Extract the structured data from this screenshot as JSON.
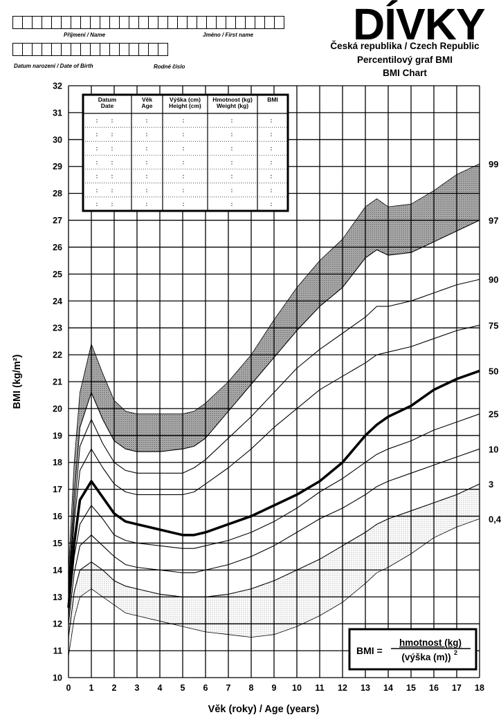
{
  "form": {
    "surname_label": "Příjmení  / Name",
    "firstname_label": "Jméno / First name",
    "dob_label": "Datum narození / Date of Birth",
    "id_label": "Rodné číslo"
  },
  "header": {
    "title": "DÍVKY",
    "line1": "Česká republika / Czech Republic",
    "line2": "Percentilový graf BMI",
    "line3": "BMI Chart"
  },
  "record_table": {
    "headers": [
      [
        "Datum",
        "Date"
      ],
      [
        "Věk",
        "Age"
      ],
      [
        "Výška (cm)",
        "Height (cm)"
      ],
      [
        "Hmotnost (kg)",
        "Weight (kg)"
      ],
      [
        "BMI",
        ""
      ]
    ],
    "row_count": 7
  },
  "formula": {
    "lhs": "BMI =",
    "numerator": "hmotnost (kg)",
    "denominator": "(výška (m))",
    "exponent": "2"
  },
  "chart_data": {
    "type": "line",
    "xlabel": "Věk (roky) / Age (years)",
    "ylabel": "BMI (kg/m²)",
    "xlim": [
      0,
      18
    ],
    "ylim": [
      10,
      32
    ],
    "x_ticks": [
      0,
      1,
      2,
      3,
      4,
      5,
      6,
      7,
      8,
      9,
      10,
      11,
      12,
      13,
      14,
      15,
      16,
      17,
      18
    ],
    "y_ticks": [
      10,
      11,
      12,
      13,
      14,
      15,
      16,
      17,
      18,
      19,
      20,
      21,
      22,
      23,
      24,
      25,
      26,
      27,
      28,
      29,
      30,
      31,
      32
    ],
    "grid": true,
    "x": [
      0,
      0.25,
      0.5,
      1,
      1.5,
      2,
      2.5,
      3,
      4,
      5,
      5.5,
      6,
      7,
      8,
      9,
      10,
      11,
      12,
      13,
      13.5,
      14,
      15,
      16,
      17,
      18
    ],
    "series": [
      {
        "name": "99",
        "values": [
          14.0,
          18.0,
          20.6,
          22.4,
          21.3,
          20.3,
          19.9,
          19.8,
          19.8,
          19.8,
          19.9,
          20.2,
          21.0,
          22.0,
          23.3,
          24.5,
          25.5,
          26.3,
          27.5,
          27.8,
          27.5,
          27.6,
          28.1,
          28.7,
          29.1
        ]
      },
      {
        "name": "97",
        "values": [
          13.5,
          16.8,
          19.3,
          20.6,
          19.6,
          18.8,
          18.5,
          18.4,
          18.4,
          18.5,
          18.6,
          18.9,
          19.9,
          20.9,
          21.9,
          22.9,
          23.8,
          24.5,
          25.6,
          25.9,
          25.7,
          25.8,
          26.2,
          26.6,
          27.0
        ]
      },
      {
        "name": "90",
        "values": [
          13.2,
          16.2,
          18.6,
          19.6,
          18.7,
          18.0,
          17.7,
          17.6,
          17.6,
          17.6,
          17.8,
          18.1,
          18.9,
          19.7,
          20.6,
          21.5,
          22.2,
          22.8,
          23.4,
          23.8,
          23.8,
          24.0,
          24.3,
          24.6,
          24.8
        ]
      },
      {
        "name": "75",
        "values": [
          13.0,
          15.8,
          17.7,
          18.5,
          17.8,
          17.2,
          16.9,
          16.8,
          16.8,
          16.8,
          16.9,
          17.2,
          17.8,
          18.5,
          19.3,
          20.0,
          20.7,
          21.2,
          21.7,
          22.0,
          22.1,
          22.3,
          22.6,
          22.9,
          23.1
        ]
      },
      {
        "name": "50",
        "values": [
          12.6,
          15.0,
          16.6,
          17.3,
          16.7,
          16.1,
          15.8,
          15.7,
          15.5,
          15.3,
          15.3,
          15.4,
          15.7,
          16.0,
          16.4,
          16.8,
          17.3,
          18.0,
          19.0,
          19.4,
          19.7,
          20.1,
          20.7,
          21.1,
          21.4
        ]
      },
      {
        "name": "25",
        "values": [
          12.3,
          14.5,
          15.7,
          16.4,
          15.9,
          15.3,
          15.1,
          15.0,
          14.9,
          14.8,
          14.8,
          14.9,
          15.1,
          15.4,
          15.8,
          16.3,
          16.9,
          17.4,
          18.0,
          18.3,
          18.5,
          18.8,
          19.2,
          19.5,
          19.8
        ]
      },
      {
        "name": "10",
        "values": [
          12.0,
          13.9,
          14.9,
          15.3,
          14.9,
          14.5,
          14.2,
          14.1,
          14.0,
          13.9,
          13.9,
          14.0,
          14.2,
          14.5,
          14.9,
          15.4,
          15.9,
          16.3,
          16.8,
          17.1,
          17.3,
          17.6,
          17.9,
          18.2,
          18.5
        ]
      },
      {
        "name": "3",
        "values": [
          11.5,
          13.2,
          14.0,
          14.3,
          14.0,
          13.6,
          13.4,
          13.3,
          13.1,
          13.0,
          13.0,
          13.0,
          13.1,
          13.3,
          13.6,
          14.0,
          14.4,
          14.9,
          15.4,
          15.7,
          15.9,
          16.2,
          16.5,
          16.8,
          17.2
        ]
      },
      {
        "name": "0,4",
        "values": [
          10.8,
          12.2,
          13.0,
          13.3,
          13.0,
          12.7,
          12.4,
          12.3,
          12.1,
          11.9,
          11.8,
          11.7,
          11.6,
          11.5,
          11.6,
          11.9,
          12.3,
          12.8,
          13.5,
          13.9,
          14.1,
          14.6,
          15.2,
          15.6,
          15.9
        ]
      }
    ]
  }
}
